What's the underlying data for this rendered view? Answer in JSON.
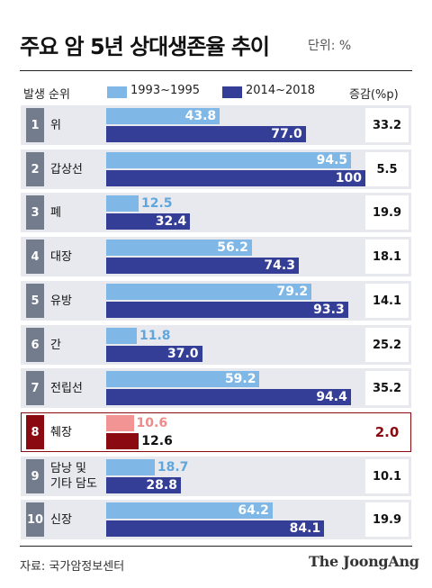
{
  "title": "주요 암 5년 상대생존율 추이",
  "unit": "단위: %",
  "header": {
    "rank_label": "발생 순위",
    "increase_label": "증감(%p)"
  },
  "colors": {
    "old": "#7fb8e6",
    "new": "#343e96",
    "highlight_old": "#f39494",
    "highlight_new": "#8b0a12",
    "row_bg": "#e7e9ee",
    "num_box": "#727c8d",
    "highlight_num_box": "#8b0a12"
  },
  "chart_data": {
    "type": "bar",
    "orientation": "horizontal",
    "series": [
      {
        "name": "1993~1995",
        "values": [
          43.8,
          94.5,
          12.5,
          56.2,
          79.2,
          11.8,
          59.2,
          10.6,
          18.7,
          64.2
        ]
      },
      {
        "name": "2014~2018",
        "values": [
          77.0,
          100,
          32.4,
          74.3,
          93.3,
          37.0,
          94.4,
          12.6,
          28.8,
          84.1
        ]
      }
    ],
    "value_labels": {
      "1993~1995": [
        "43.8",
        "94.5",
        "12.5",
        "56.2",
        "79.2",
        "11.8",
        "59.2",
        "10.6",
        "18.7",
        "64.2"
      ],
      "2014~2018": [
        "77.0",
        "100",
        "32.4",
        "74.3",
        "93.3",
        "37.0",
        "94.4",
        "12.6",
        "28.8",
        "84.1"
      ]
    },
    "xlim": [
      0,
      100
    ],
    "rows": [
      {
        "rank": "1",
        "cancer": [
          "위"
        ],
        "increase": "33.2"
      },
      {
        "rank": "2",
        "cancer": [
          "갑상선"
        ],
        "increase": "5.5"
      },
      {
        "rank": "3",
        "cancer": [
          "폐"
        ],
        "increase": "19.9"
      },
      {
        "rank": "4",
        "cancer": [
          "대장"
        ],
        "increase": "18.1"
      },
      {
        "rank": "5",
        "cancer": [
          "유방"
        ],
        "increase": "14.1"
      },
      {
        "rank": "6",
        "cancer": [
          "간"
        ],
        "increase": "25.2"
      },
      {
        "rank": "7",
        "cancer": [
          "전립선"
        ],
        "increase": "35.2"
      },
      {
        "rank": "8",
        "cancer": [
          "췌장"
        ],
        "increase": "2.0",
        "highlight": true
      },
      {
        "rank": "9",
        "cancer": [
          "담낭 및",
          "기타 담도"
        ],
        "increase": "10.1"
      },
      {
        "rank": "10",
        "cancer": [
          "신장"
        ],
        "increase": "19.9"
      }
    ]
  },
  "footer": {
    "source": "자료: 국가암정보센터",
    "logo": "The JoongAng"
  }
}
